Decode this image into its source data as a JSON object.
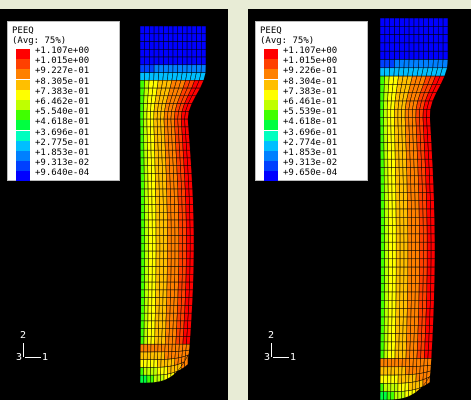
{
  "viewports": [
    {
      "legend": {
        "title_line1": "PEEQ",
        "title_line2": "(Avg: 75%)",
        "entries": [
          {
            "label": "+1.107e+00",
            "color": "#ff0000"
          },
          {
            "label": "+1.015e+00",
            "color": "#ff4000"
          },
          {
            "label": "+9.227e-01",
            "color": "#ff8000"
          },
          {
            "label": "+8.305e-01",
            "color": "#ffbf00"
          },
          {
            "label": "+7.383e-01",
            "color": "#ffff00"
          },
          {
            "label": "+6.462e-01",
            "color": "#bfff00"
          },
          {
            "label": "+5.540e-01",
            "color": "#40ff00"
          },
          {
            "label": "+4.618e-01",
            "color": "#00ff40"
          },
          {
            "label": "+3.696e-01",
            "color": "#00ffbf"
          },
          {
            "label": "+2.775e-01",
            "color": "#00bfff"
          },
          {
            "label": "+1.853e-01",
            "color": "#0080ff"
          },
          {
            "label": "+9.313e-02",
            "color": "#0040ff"
          },
          {
            "label": "+9.640e-04",
            "color": "#0000ff"
          }
        ]
      },
      "triad": {
        "axis_y": "2",
        "axis_z": "3",
        "axis_x": "1"
      }
    },
    {
      "legend": {
        "title_line1": "PEEQ",
        "title_line2": "(Avg: 75%)",
        "entries": [
          {
            "label": "+1.107e+00",
            "color": "#ff0000"
          },
          {
            "label": "+1.015e+00",
            "color": "#ff4000"
          },
          {
            "label": "+9.226e-01",
            "color": "#ff8000"
          },
          {
            "label": "+8.304e-01",
            "color": "#ffbf00"
          },
          {
            "label": "+7.383e-01",
            "color": "#ffff00"
          },
          {
            "label": "+6.461e-01",
            "color": "#bfff00"
          },
          {
            "label": "+5.539e-01",
            "color": "#40ff00"
          },
          {
            "label": "+4.618e-01",
            "color": "#00ff40"
          },
          {
            "label": "+3.696e-01",
            "color": "#00ffbf"
          },
          {
            "label": "+2.774e-01",
            "color": "#00bfff"
          },
          {
            "label": "+1.853e-01",
            "color": "#0080ff"
          },
          {
            "label": "+9.313e-02",
            "color": "#0040ff"
          },
          {
            "label": "+9.650e-04",
            "color": "#0000ff"
          }
        ]
      },
      "triad": {
        "axis_y": "2",
        "axis_z": "3",
        "axis_x": "1"
      }
    }
  ]
}
